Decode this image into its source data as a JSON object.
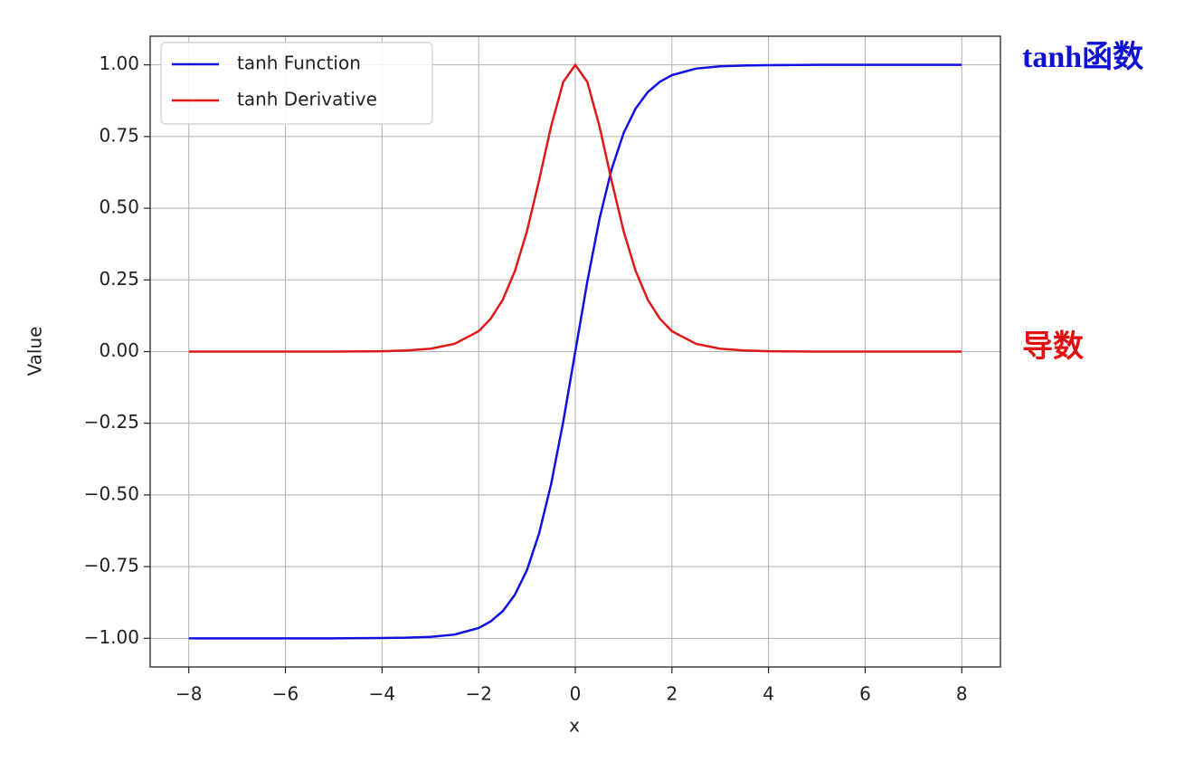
{
  "chart_data": {
    "type": "line",
    "x_label": "x",
    "y_label": "Value",
    "x": [
      -8,
      -7,
      -6,
      -5,
      -4,
      -3.5,
      -3,
      -2.5,
      -2,
      -1.75,
      -1.5,
      -1.25,
      -1,
      -0.75,
      -0.5,
      -0.25,
      0,
      0.25,
      0.5,
      0.75,
      1,
      1.25,
      1.5,
      1.75,
      2,
      2.5,
      3,
      3.5,
      4,
      5,
      6,
      7,
      8
    ],
    "series": [
      {
        "name": "tanh Function",
        "color": "#1010e0",
        "values": [
          -1,
          -1,
          -1,
          -1,
          -0.999,
          -0.998,
          -0.995,
          -0.987,
          -0.964,
          -0.941,
          -0.905,
          -0.848,
          -0.762,
          -0.635,
          -0.462,
          -0.245,
          0,
          0.245,
          0.462,
          0.635,
          0.762,
          0.848,
          0.905,
          0.941,
          0.964,
          0.987,
          0.995,
          0.998,
          0.999,
          1,
          1,
          1,
          1
        ]
      },
      {
        "name": "tanh Derivative",
        "color": "#e01818",
        "values": [
          0,
          0,
          0,
          0,
          0.001,
          0.004,
          0.01,
          0.027,
          0.071,
          0.115,
          0.181,
          0.281,
          0.42,
          0.597,
          0.786,
          0.94,
          1,
          0.94,
          0.786,
          0.597,
          0.42,
          0.281,
          0.181,
          0.115,
          0.071,
          0.027,
          0.01,
          0.004,
          0.001,
          0,
          0,
          0,
          0
        ]
      }
    ],
    "xlim": [
      -8.8,
      8.8
    ],
    "ylim": [
      -1.1,
      1.1
    ],
    "xticks": [
      {
        "value": -8,
        "label": "−8"
      },
      {
        "value": -6,
        "label": "−6"
      },
      {
        "value": -4,
        "label": "−4"
      },
      {
        "value": -2,
        "label": "−2"
      },
      0,
      2,
      4,
      6,
      8
    ],
    "yticks": [
      {
        "value": -1,
        "label": "−1.00"
      },
      {
        "value": -0.75,
        "label": "−0.75"
      },
      {
        "value": -0.5,
        "label": "−0.50"
      },
      {
        "value": -0.25,
        "label": "−0.25"
      },
      {
        "value": 0,
        "label": "0.00"
      },
      {
        "value": 0.25,
        "label": "0.25"
      },
      {
        "value": 0.5,
        "label": "0.50"
      },
      {
        "value": 0.75,
        "label": "0.75"
      },
      {
        "value": 1,
        "label": "1.00"
      }
    ],
    "grid": true,
    "legend": "upper left",
    "annotations": [
      {
        "text": "tanh函数",
        "color": "#1010d0"
      },
      {
        "text": "导数",
        "color": "#e01010"
      }
    ]
  }
}
